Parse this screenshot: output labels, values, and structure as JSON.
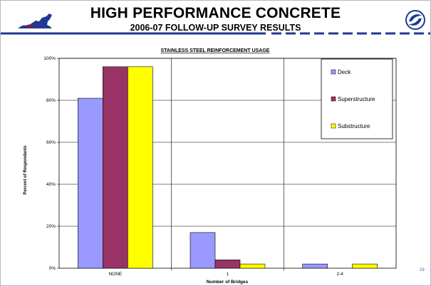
{
  "slide": {
    "title": "HIGH PERFORMANCE CONCRETE",
    "subtitle": "2006-07 FOLLOW-UP SURVEY RESULTS",
    "page_number": "29"
  },
  "colors": {
    "header_rule": "#1f3a93",
    "deck": "#9999ff",
    "superstructure": "#993366",
    "substructure": "#ffff00"
  },
  "chart_data": {
    "type": "bar",
    "title": "STAINLESS STEEL REINFORCEMENT USAGE",
    "xlabel": "Number of Bridges",
    "ylabel": "Percent of Respondants",
    "categories": [
      "NONE",
      "1",
      "2-4"
    ],
    "yticks": [
      "0%",
      "20%",
      "40%",
      "60%",
      "80%",
      "100%"
    ],
    "ylim": [
      0,
      100
    ],
    "grid": true,
    "legend_position": "top-right",
    "series": [
      {
        "name": "Deck",
        "color": "#9999ff",
        "values": [
          81,
          17,
          2
        ]
      },
      {
        "name": "Superstructure",
        "color": "#993366",
        "values": [
          96,
          4,
          0
        ]
      },
      {
        "name": "Substructure",
        "color": "#ffff00",
        "values": [
          96,
          2,
          2
        ]
      }
    ]
  }
}
